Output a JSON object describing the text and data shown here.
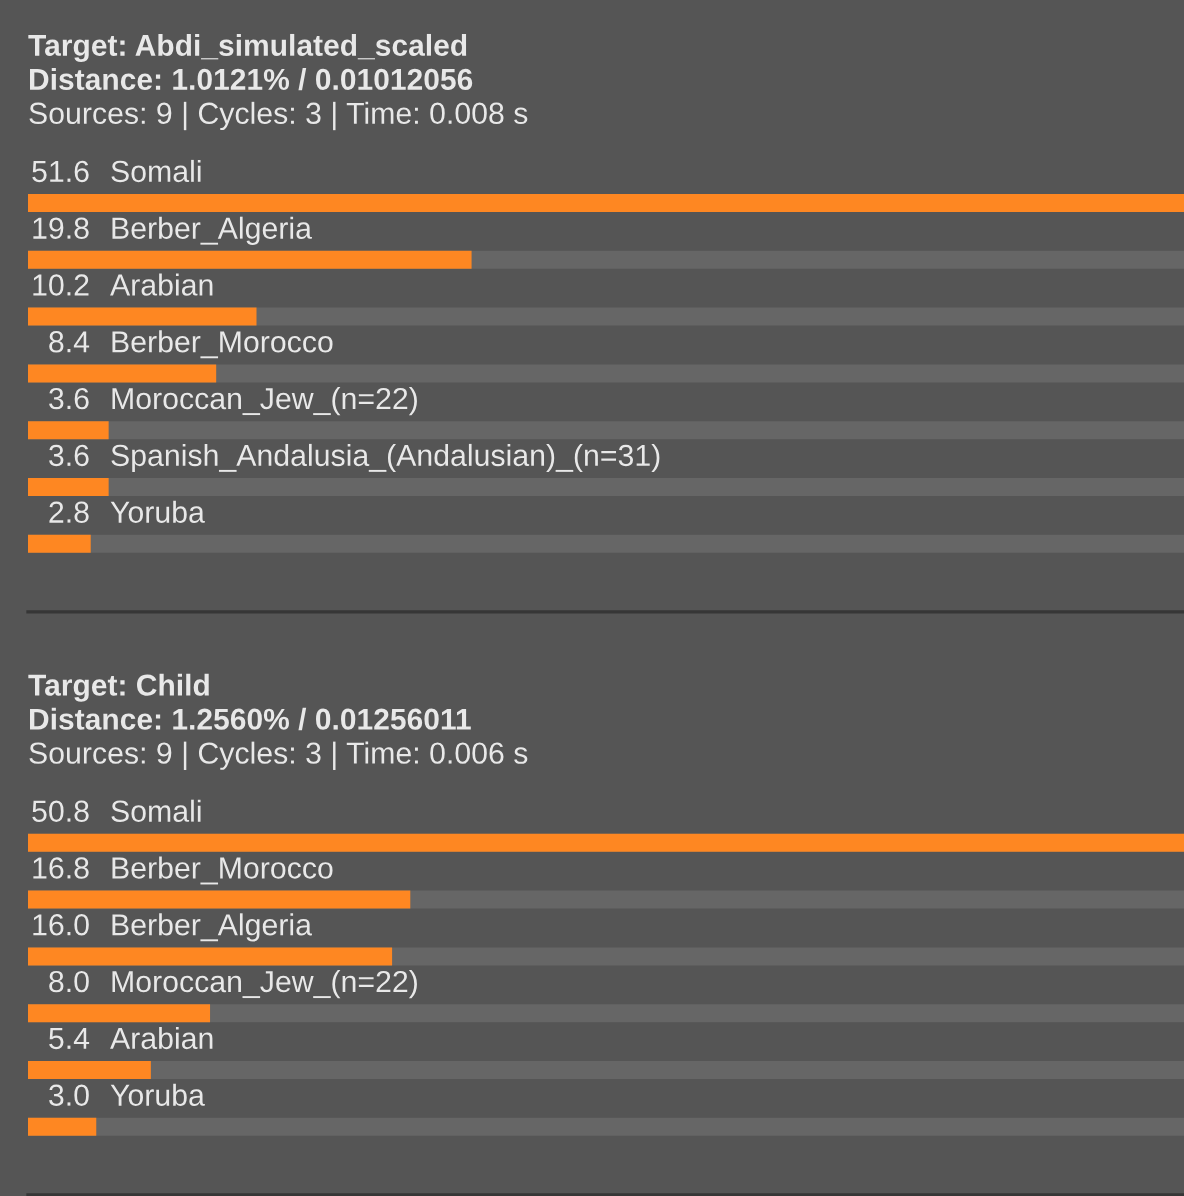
{
  "chart_data": [
    {
      "type": "bar",
      "orientation": "horizontal",
      "title": "Target: Abdi_simulated_scaled",
      "subtitle": "Distance: 1.0121% / 0.01012056",
      "annotations": [
        "Sources: 9 | Cycles: 3 | Time: 0.008 s"
      ],
      "categories": [
        "Somali",
        "Berber_Algeria",
        "Arabian",
        "Berber_Morocco",
        "Moroccan_Jew_(n=22)",
        "Spanish_Andalusia_(Andalusian)_(n=31)",
        "Yoruba"
      ],
      "values": [
        51.6,
        19.8,
        10.2,
        8.4,
        3.6,
        3.6,
        2.8
      ],
      "color": "#fe8722",
      "data_labels": true,
      "xlim": [
        0,
        51.6
      ]
    },
    {
      "type": "bar",
      "orientation": "horizontal",
      "title": "Target: Child",
      "subtitle": "Distance: 1.2560% / 0.01256011",
      "annotations": [
        "Sources: 9 | Cycles: 3 | Time: 0.006 s"
      ],
      "categories": [
        "Somali",
        "Berber_Morocco",
        "Berber_Algeria",
        "Moroccan_Jew_(n=22)",
        "Arabian",
        "Yoruba"
      ],
      "values": [
        50.8,
        16.8,
        16.0,
        8.0,
        5.4,
        3.0
      ],
      "value_labels": [
        "50.8",
        "16.8",
        "16.0",
        "8.0",
        "5.4",
        "3.0"
      ],
      "color": "#fe8722",
      "xlim": [
        0,
        50.8
      ]
    }
  ]
}
